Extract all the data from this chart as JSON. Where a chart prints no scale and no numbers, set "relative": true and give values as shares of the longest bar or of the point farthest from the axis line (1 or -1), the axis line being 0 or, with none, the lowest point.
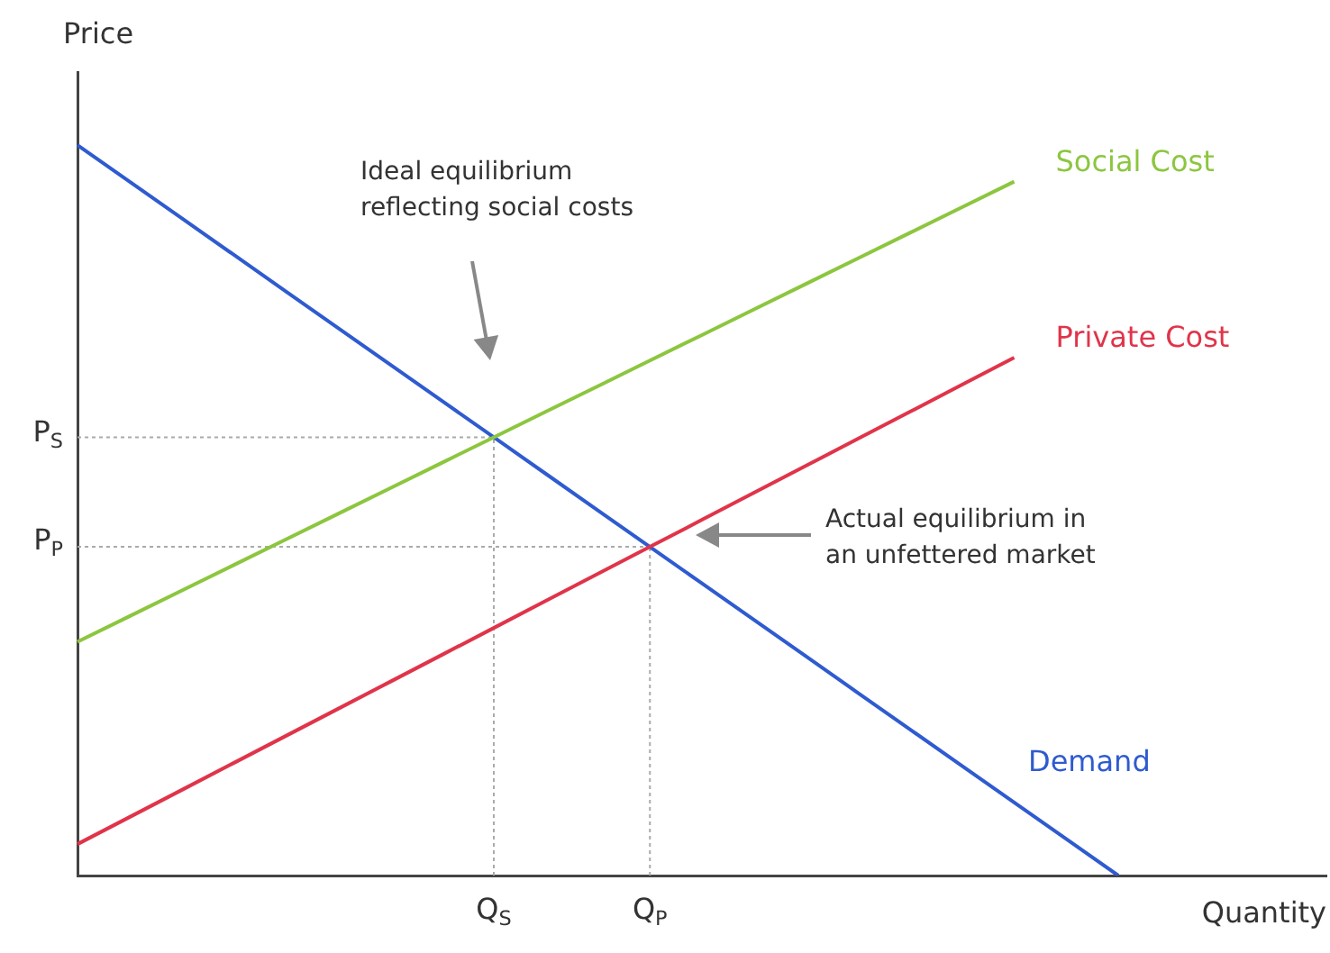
{
  "chart_data": {
    "type": "line",
    "relative": true,
    "xlabel": "Quantity",
    "ylabel": "Price",
    "legend": false,
    "grid": false,
    "marker": "none",
    "categories": [
      null,
      null,
      null,
      null,
      null,
      null,
      null,
      null,
      "Q$_{S}$",
      null,
      null,
      "Q$_{P}$",
      null,
      null,
      null,
      null,
      null,
      null,
      null,
      null,
      null,
      null,
      null,
      null,
      null
    ],
    "series": [
      {
        "name": "Social Cost",
        "color": "#8cc63f",
        "values": [
          0.32,
          0.355,
          0.39,
          0.425,
          0.46,
          0.495,
          0.53,
          0.565,
          0.6,
          0.635,
          0.67,
          0.705,
          0.74,
          0.775,
          0.81,
          0.845,
          0.88,
          0.915,
          0.95,
          null,
          null,
          null,
          null,
          null,
          null
        ]
      },
      {
        "name": "Private Cost",
        "color": "#e0344a",
        "values": [
          0.043,
          0.08,
          0.117,
          0.154,
          0.191,
          0.228,
          0.265,
          0.302,
          0.339,
          0.376,
          0.413,
          0.45,
          0.487,
          0.524,
          0.561,
          0.598,
          0.635,
          0.672,
          0.709,
          null,
          null,
          null,
          null,
          null,
          null
        ]
      },
      {
        "name": "Demand",
        "color": "#2f5bd0",
        "values": [
          1,
          0.95,
          0.9,
          0.85,
          0.8,
          0.75,
          0.7,
          0.65,
          0.6,
          0.55,
          0.5,
          0.45,
          0.4,
          0.35,
          0.3,
          0.25,
          0.2,
          0.15,
          0.1,
          0.05,
          0,
          null,
          null,
          null,
          null
        ]
      },
      {
        "color": "#aaaaaa",
        "line_style": "dotted",
        "values": [
          0.6,
          0.6,
          0.6,
          0.6,
          0.6,
          0.6,
          0.6,
          0.6,
          0.6,
          null,
          null,
          null,
          null,
          null,
          null,
          null,
          null,
          null,
          null,
          null,
          null,
          null,
          null,
          null,
          null
        ]
      },
      {
        "color": "#aaaaaa",
        "line_style": "dotted",
        "values": [
          0.45,
          0.45,
          0.45,
          0.45,
          0.45,
          0.45,
          0.45,
          0.45,
          0.45,
          0.45,
          0.45,
          0.45,
          null,
          null,
          null,
          null,
          null,
          null,
          null,
          null,
          null,
          null,
          null,
          null,
          null
        ]
      },
      {
        "color": "#aaaaaa",
        "line_style": "dotted",
        "x": [
          "Q$_{S}$",
          "Q$_{S}$"
        ],
        "values": [
          0,
          0.6
        ]
      },
      {
        "color": "#aaaaaa",
        "line_style": "dotted",
        "x": [
          "Q$_{P}$",
          "Q$_{P}$"
        ],
        "values": [
          0,
          0.45
        ]
      }
    ],
    "annotations": [
      "Ideal equilibrium\nreflecting social costs",
      "Actual equilibrium in\nan unfettered market",
      "P$_{S}$",
      "P$_{P}$"
    ]
  }
}
